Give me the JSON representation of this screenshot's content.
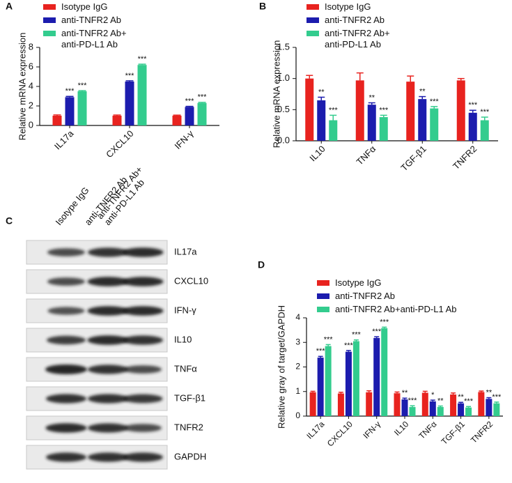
{
  "chart_data": [
    {
      "type": "bar",
      "panel": "A",
      "ylabel": "Relative mRNA expression",
      "categories": [
        "IL17a",
        "CXCL10",
        "IFN-γ"
      ],
      "ylim": [
        0,
        8
      ],
      "yticks": [
        0,
        2,
        4,
        6,
        8
      ],
      "series": [
        {
          "name": "Isotype IgG",
          "color": "#e8231f",
          "values": [
            1.0,
            1.0,
            1.0
          ],
          "errors": [
            0.08,
            0.07,
            0.06
          ]
        },
        {
          "name": "anti-TNFR2 Ab",
          "color": "#1c1cae",
          "values": [
            2.9,
            4.5,
            1.9
          ],
          "errors": [
            0.08,
            0.08,
            0.06
          ],
          "labels": [
            "***",
            "***",
            "***"
          ]
        },
        {
          "name": "anti-TNFR2 Ab+\nanti-PD-L1 Ab",
          "color": "#33cc8e",
          "values": [
            3.5,
            6.2,
            2.3
          ],
          "errors": [
            0.07,
            0.08,
            0.07
          ],
          "labels": [
            "***",
            "***",
            "***"
          ]
        }
      ]
    },
    {
      "type": "bar",
      "panel": "B",
      "ylabel": "Relative mRNA expression",
      "categories": [
        "IL10",
        "TNFα",
        "TGF-β1",
        "TNFR2"
      ],
      "ylim": [
        0,
        1.5
      ],
      "yticks": [
        {
          "value": 0,
          "label": "0.0"
        },
        0.5,
        {
          "value": 1,
          "label": "1.0"
        },
        1.5
      ],
      "series": [
        {
          "name": "Isotype IgG",
          "color": "#e8231f",
          "values": [
            1.0,
            0.97,
            0.95,
            0.97
          ],
          "errors": [
            0.05,
            0.12,
            0.09,
            0.03
          ]
        },
        {
          "name": "anti-TNFR2 Ab",
          "color": "#1c1cae",
          "values": [
            0.65,
            0.58,
            0.67,
            0.45
          ],
          "errors": [
            0.05,
            0.03,
            0.04,
            0.04
          ],
          "labels": [
            "**",
            "**",
            "**",
            "***"
          ]
        },
        {
          "name": "anti-TNFR2 Ab+\nanti-PD-L1 Ab",
          "color": "#33cc8e",
          "values": [
            0.33,
            0.38,
            0.52,
            0.33
          ],
          "errors": [
            0.08,
            0.03,
            0.03,
            0.05
          ],
          "labels": [
            "***",
            "***",
            "***",
            "***"
          ]
        }
      ]
    },
    {
      "type": "bar",
      "panel": "D",
      "ylabel": "Relative gray of target/GAPDH",
      "categories": [
        "IL17a",
        "CXCL10",
        "IFN-γ",
        "IL10",
        "TNFα",
        "TGF-β1",
        "TNFR2"
      ],
      "ylim": [
        0,
        4
      ],
      "yticks": [
        0,
        1,
        2,
        3,
        4
      ],
      "series": [
        {
          "name": "Isotype IgG",
          "color": "#e8231f",
          "values": [
            0.97,
            0.92,
            0.97,
            0.93,
            0.95,
            0.88,
            0.98
          ],
          "errors": [
            0.04,
            0.05,
            0.06,
            0.05,
            0.06,
            0.06,
            0.04
          ]
        },
        {
          "name": "anti-TNFR2 Ab",
          "color": "#1c1cae",
          "values": [
            2.38,
            2.62,
            3.18,
            0.68,
            0.6,
            0.52,
            0.7
          ],
          "errors": [
            0.05,
            0.05,
            0.05,
            0.05,
            0.05,
            0.04,
            0.05
          ],
          "labels": [
            "***",
            "***",
            "***",
            "**",
            "*",
            "**",
            "**"
          ]
        },
        {
          "name": "anti-TNFR2 Ab+anti-PD-L1 Ab",
          "color": "#33cc8e",
          "values": [
            2.85,
            3.05,
            3.58,
            0.37,
            0.37,
            0.35,
            0.52
          ],
          "errors": [
            0.06,
            0.05,
            0.04,
            0.05,
            0.04,
            0.04,
            0.05
          ],
          "labels": [
            "***",
            "***",
            "***",
            "***",
            "**",
            "***",
            "***"
          ]
        }
      ]
    }
  ],
  "blot": {
    "panel": "C",
    "lanes": [
      "Isotype IgG",
      "anti-TNFR2 Ab",
      "anti-TNFR2 Ab+\nanti-PD-L1 Ab"
    ],
    "targets": [
      "IL17a",
      "CXCL10",
      "IFN-γ",
      "IL10",
      "TNFα",
      "TGF-β1",
      "TNFR2",
      "GAPDH"
    ]
  }
}
